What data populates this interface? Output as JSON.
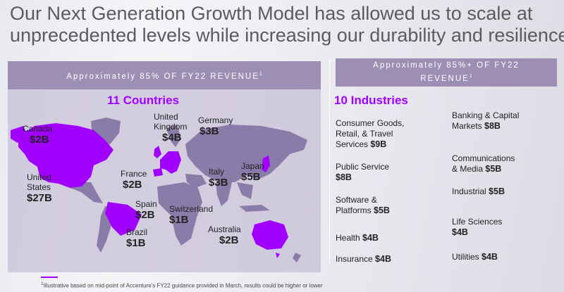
{
  "title": {
    "line1": "Our Next Generation Growth Model has allowed us to scale at",
    "line2": "unprecedented levels while increasing our durability and resilience"
  },
  "left_banner": {
    "text": "Approximately 85% OF FY22 REVENUE",
    "sup": "1"
  },
  "right_banner": {
    "line1": "Approximately 85%+ OF FY22",
    "line2": "REVENUE",
    "sup": "1"
  },
  "countries": {
    "heading": "11 Countries",
    "items": [
      {
        "name": "Canada",
        "value": "$2B"
      },
      {
        "name": "United\nKingdom",
        "value": "$4B"
      },
      {
        "name": "Germany",
        "value": "$3B"
      },
      {
        "name": "United\nStates",
        "value": "$27B"
      },
      {
        "name": "France",
        "value": "$2B"
      },
      {
        "name": "Italy",
        "value": "$3B"
      },
      {
        "name": "Japan",
        "value": "$5B"
      },
      {
        "name": "Spain",
        "value": "$2B"
      },
      {
        "name": "Switzerland",
        "value": "$1B"
      },
      {
        "name": "Brazil",
        "value": "$1B"
      },
      {
        "name": "Australia",
        "value": "$2B"
      }
    ]
  },
  "industries": {
    "heading": "10 Industries",
    "items": [
      {
        "name": "Consumer Goods,\nRetail, & Travel\nServices",
        "value": "$9B"
      },
      {
        "name": "Public Service",
        "value": "$8B"
      },
      {
        "name": "Software &\nPlatforms",
        "value": "$5B"
      },
      {
        "name": "Health",
        "value": "$4B"
      },
      {
        "name": "Insurance",
        "value": "$4B"
      },
      {
        "name": "Banking & Capital\nMarkets",
        "value": "$8B"
      },
      {
        "name": "Communications\n& Media",
        "value": "$5B"
      },
      {
        "name": "Industrial",
        "value": "$5B"
      },
      {
        "name": "Life Sciences",
        "value": "$4B"
      },
      {
        "name": "Utilities",
        "value": "$4B"
      }
    ]
  },
  "footnote": "Illustrative based on mid-point of Accenture's FY22 guidance provided in March, results could be higher or lower",
  "footnote_sup": "1",
  "colors": {
    "accent": "#a100ff",
    "banner": "#9d8fb4",
    "land": "#8a7ca8",
    "highlight": "#a100ff"
  }
}
